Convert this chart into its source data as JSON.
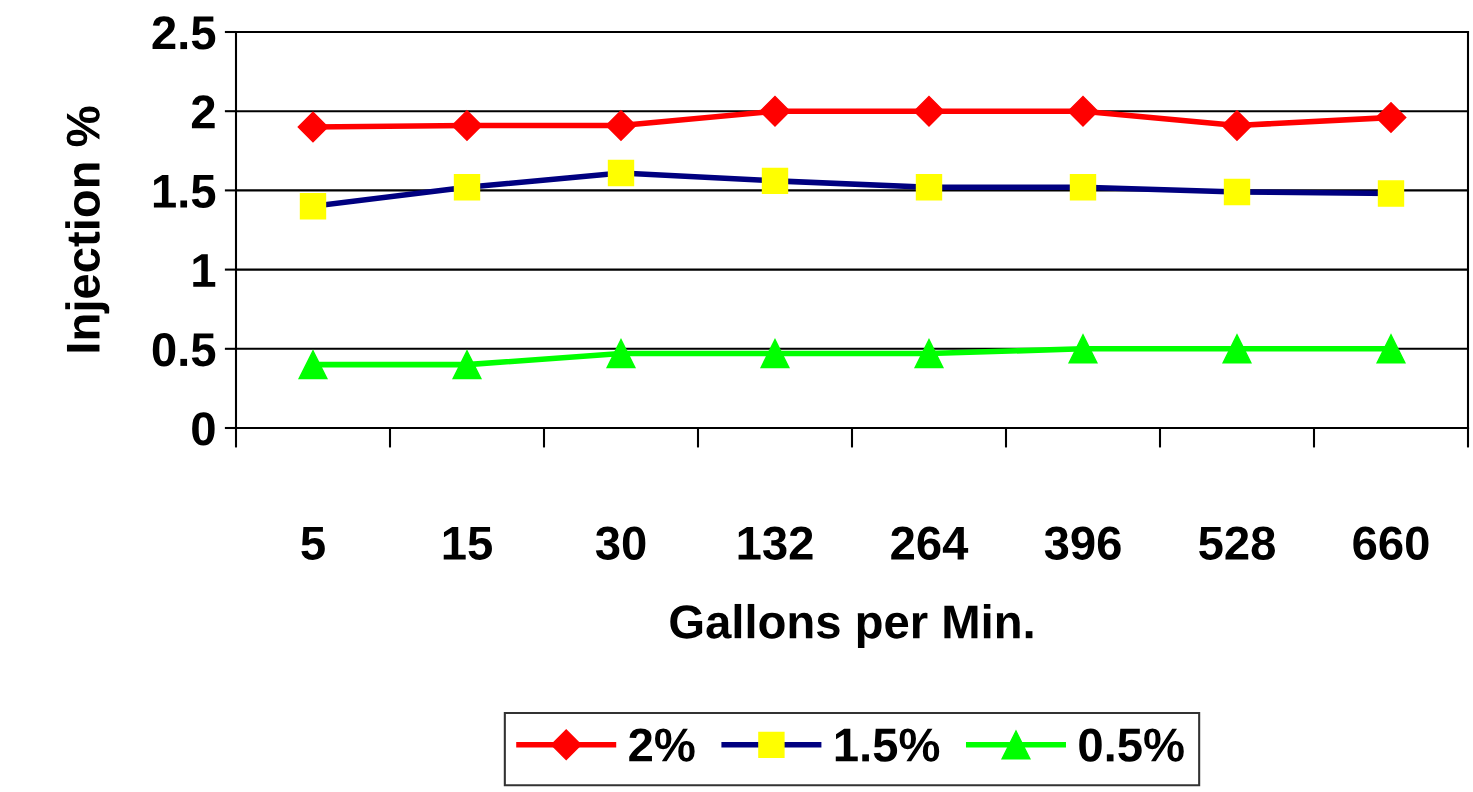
{
  "chart_data": {
    "type": "line",
    "xlabel": "Gallons per Min.",
    "ylabel": "Injection %",
    "categories": [
      "5",
      "15",
      "30",
      "132",
      "264",
      "396",
      "528",
      "660"
    ],
    "series": [
      {
        "name": "2%",
        "color": "#ff0000",
        "marker": "diamond",
        "values": [
          1.9,
          1.91,
          1.91,
          2.0,
          2.0,
          2.0,
          1.91,
          1.96
        ]
      },
      {
        "name": "1.5%",
        "color": "#000080",
        "marker": "square",
        "values": [
          1.4,
          1.52,
          1.61,
          1.56,
          1.52,
          1.52,
          1.49,
          1.48
        ]
      },
      {
        "name": "0.5%",
        "color": "#00ff00",
        "marker": "triangle",
        "values": [
          0.4,
          0.4,
          0.47,
          0.47,
          0.47,
          0.5,
          0.5,
          0.5
        ]
      }
    ],
    "ylim": [
      0,
      2.5
    ],
    "yticks": [
      0,
      0.5,
      1,
      1.5,
      2,
      2.5
    ],
    "grid": "y",
    "legend": "bottom",
    "line_style": "solid"
  }
}
